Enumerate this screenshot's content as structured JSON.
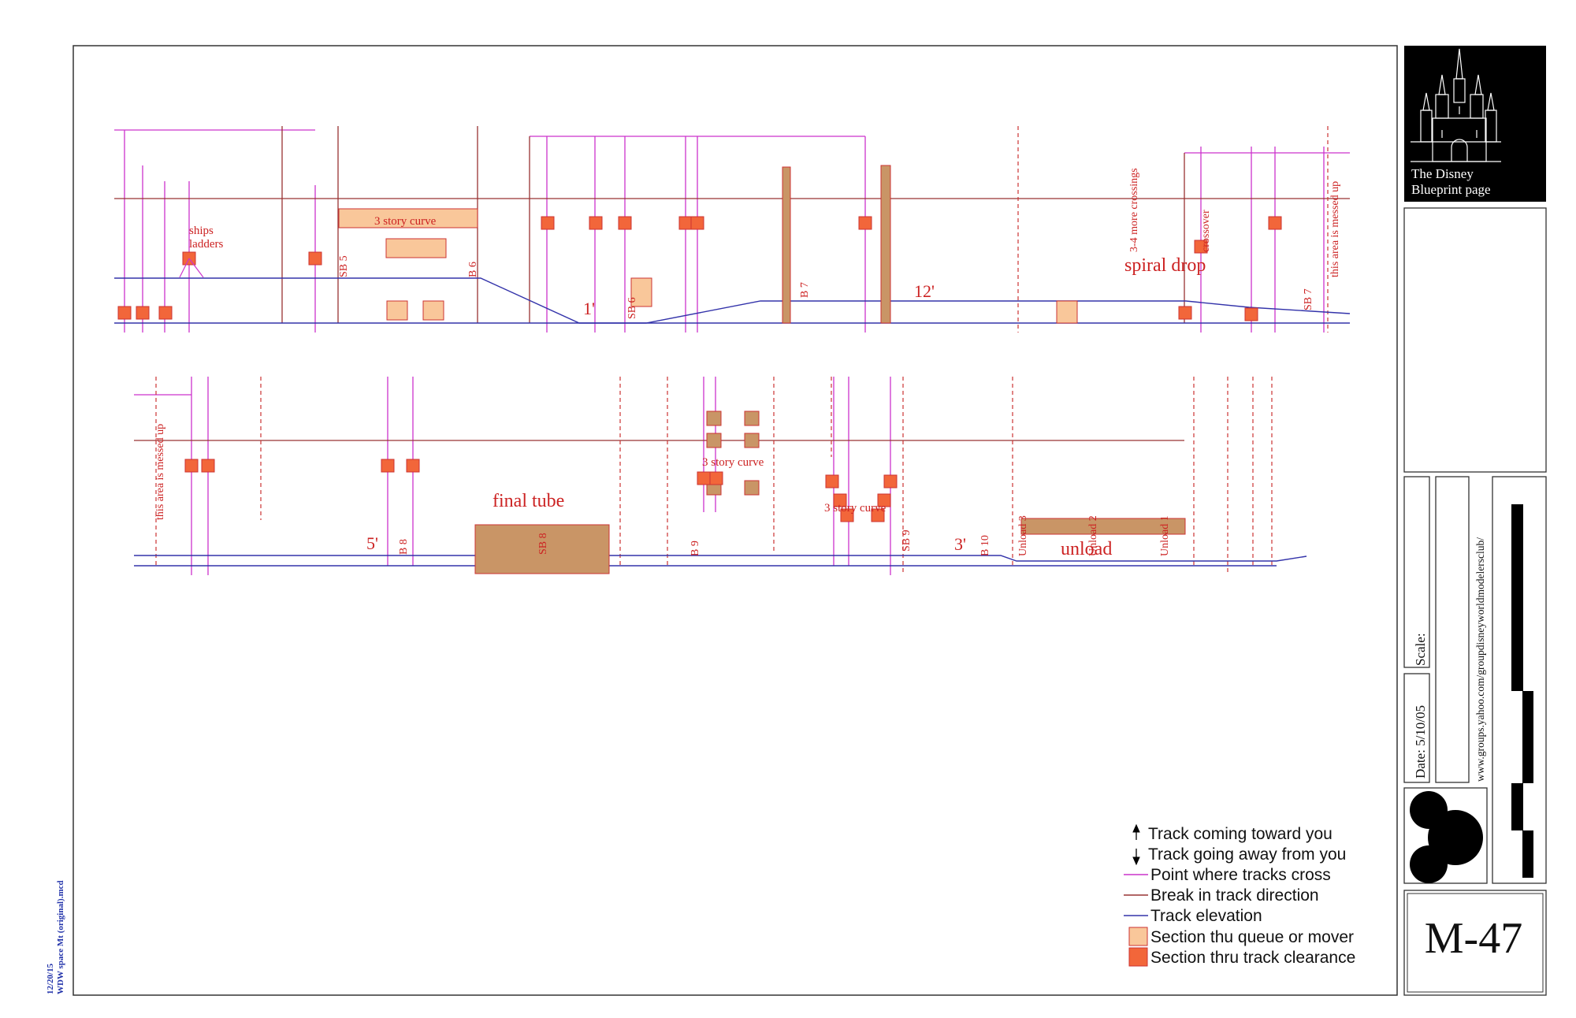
{
  "side_note": {
    "date": "12/20/15",
    "file": "WDW space Mt (original).mcd"
  },
  "title_block": {
    "logo_line1": "The Disney",
    "logo_line2": "Blueprint page",
    "scale_label": "Scale:",
    "date_label": "Date:  5/10/05",
    "website": "www.groups.yahoo.com/groupdisneyworldmodelersclub/",
    "page_number": "M-47"
  },
  "legend": {
    "toward": "Track coming toward you",
    "away": "Track going away from you",
    "cross": "Point where tracks cross",
    "break": "Break in track direction",
    "elevation": "Track elevation",
    "queue": "Section thu queue or mover",
    "clearance": "Section thru track clearance"
  },
  "top_labels": {
    "ships_ladders_1": "ships",
    "ships_ladders_2": "ladders",
    "story_curve": "3 story curve",
    "sb5": "SB 5",
    "b6": "B 6",
    "sb6": "SB 6",
    "one_ft": "1'",
    "b7": "B 7",
    "twelve_ft": "12'",
    "more_crossings": "3-4 more crossings",
    "crossover": "crossover",
    "spiral_drop": "spiral drop",
    "messed_up": "this area is messed up",
    "sb7": "SB 7"
  },
  "bottom_labels": {
    "messed_up": "this area is messed up",
    "final_tube": "final tube",
    "five_ft": "5'",
    "b8": "B 8",
    "sb8": "SB 8",
    "b9": "B 9",
    "story_curve_a": "3 story curve",
    "story_curve_b": "3 story curve",
    "sb9": "SB 9",
    "three_ft": "3'",
    "b10": "B 10",
    "unload3": "Unload 3",
    "unload2": "Unload 2",
    "unload1": "Unload 1",
    "unload": "unload"
  },
  "colors": {
    "cross": "#cc33cc",
    "break": "#993333",
    "elevation": "#3333aa",
    "queue": "#f9c79a",
    "clearance": "#f2663a",
    "tube": "#c99566",
    "text_red": "#cc2222"
  }
}
